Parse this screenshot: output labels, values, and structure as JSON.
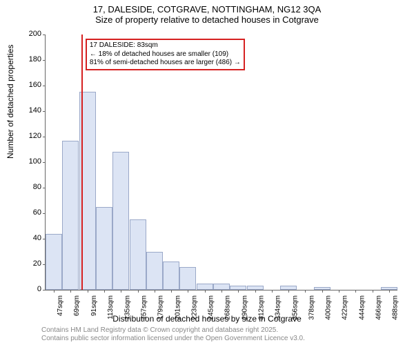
{
  "title": {
    "line1": "17, DALESIDE, COTGRAVE, NOTTINGHAM, NG12 3QA",
    "line2": "Size of property relative to detached houses in Cotgrave"
  },
  "axes": {
    "ylabel": "Number of detached properties",
    "xlabel": "Distribution of detached houses by size in Cotgrave",
    "ylim": [
      0,
      200
    ],
    "ytick_step": 20,
    "yticks": [
      0,
      20,
      40,
      60,
      80,
      100,
      120,
      140,
      160,
      180,
      200
    ]
  },
  "histogram": {
    "type": "histogram",
    "bar_fill": "#dce4f4",
    "bar_border": "#9aa8c8",
    "background": "#ffffff",
    "xtick_labels": [
      "47sqm",
      "69sqm",
      "91sqm",
      "113sqm",
      "135sqm",
      "157sqm",
      "179sqm",
      "201sqm",
      "223sqm",
      "245sqm",
      "268sqm",
      "290sqm",
      "312sqm",
      "334sqm",
      "356sqm",
      "378sqm",
      "400sqm",
      "422sqm",
      "444sqm",
      "466sqm",
      "488sqm"
    ],
    "values": [
      44,
      117,
      155,
      65,
      108,
      55,
      30,
      22,
      18,
      5,
      5,
      3,
      3,
      0,
      3,
      0,
      2,
      0,
      0,
      0,
      2
    ]
  },
  "marker": {
    "color": "#d62020",
    "position_sqm": 83,
    "annotation": {
      "line1": "17 DALESIDE: 83sqm",
      "line2": "← 18% of detached houses are smaller (109)",
      "line3": "81% of semi-detached houses are larger (486) →"
    }
  },
  "footer": {
    "line1": "Contains HM Land Registry data © Crown copyright and database right 2025.",
    "line2": "Contains public sector information licensed under the Open Government Licence v3.0."
  },
  "fonts": {
    "title_size": 13,
    "axis_label_size": 12,
    "tick_size": 11,
    "annotation_size": 10,
    "footer_size": 10
  }
}
